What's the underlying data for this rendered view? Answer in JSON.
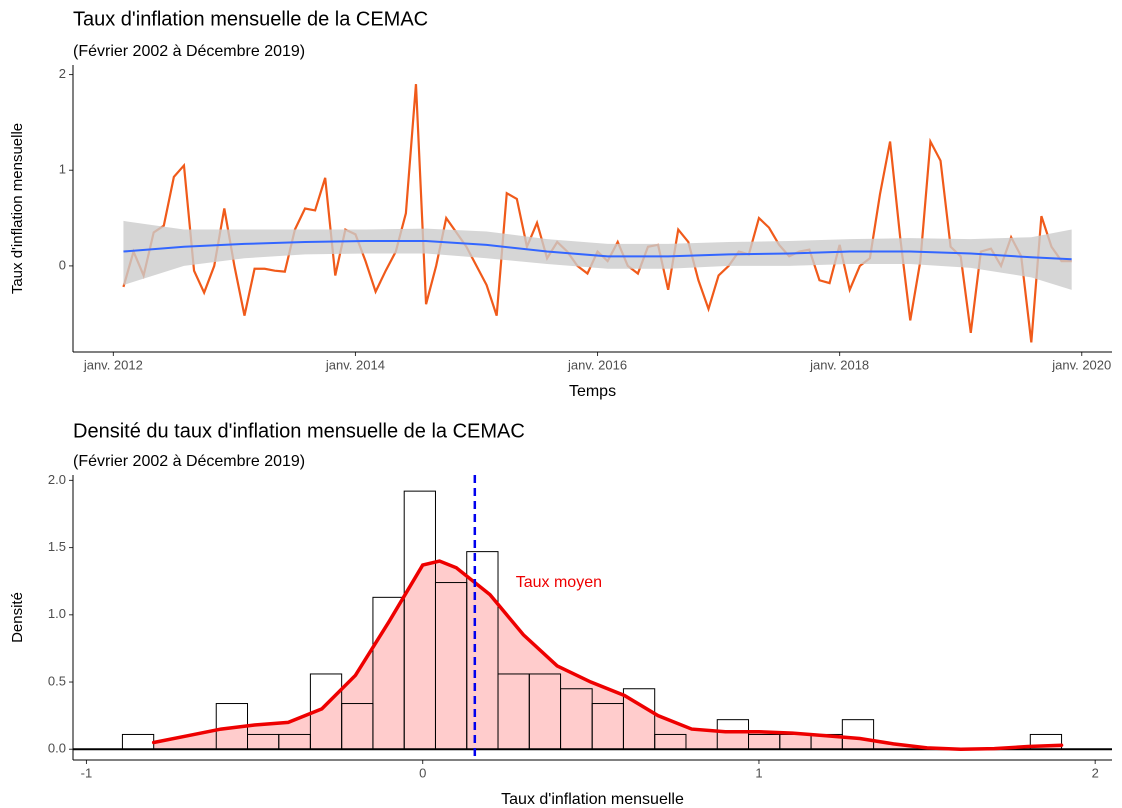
{
  "chart_data": [
    {
      "type": "line",
      "title": "Taux d'inflation mensuelle de la CEMAC",
      "subtitle": "(Février 2002 à Décembre 2019)",
      "xlabel": "Temps",
      "ylabel": "Taux d'inflation mensuelle",
      "x": [
        "2012-02",
        "2012-03",
        "2012-04",
        "2012-05",
        "2012-06",
        "2012-07",
        "2012-08",
        "2012-09",
        "2012-10",
        "2012-11",
        "2012-12",
        "2013-01",
        "2013-02",
        "2013-03",
        "2013-04",
        "2013-05",
        "2013-06",
        "2013-07",
        "2013-08",
        "2013-09",
        "2013-10",
        "2013-11",
        "2013-12",
        "2014-01",
        "2014-02",
        "2014-03",
        "2014-04",
        "2014-05",
        "2014-06",
        "2014-07",
        "2014-08",
        "2014-09",
        "2014-10",
        "2014-11",
        "2014-12",
        "2015-01",
        "2015-02",
        "2015-03",
        "2015-04",
        "2015-05",
        "2015-06",
        "2015-07",
        "2015-08",
        "2015-09",
        "2015-10",
        "2015-11",
        "2015-12",
        "2016-01",
        "2016-02",
        "2016-03",
        "2016-04",
        "2016-05",
        "2016-06",
        "2016-07",
        "2016-08",
        "2016-09",
        "2016-10",
        "2016-11",
        "2016-12",
        "2017-01",
        "2017-02",
        "2017-03",
        "2017-04",
        "2017-05",
        "2017-06",
        "2017-07",
        "2017-08",
        "2017-09",
        "2017-10",
        "2017-11",
        "2017-12",
        "2018-01",
        "2018-02",
        "2018-03",
        "2018-04",
        "2018-05",
        "2018-06",
        "2018-07",
        "2018-08",
        "2018-09",
        "2018-10",
        "2018-11",
        "2018-12",
        "2019-01",
        "2019-02",
        "2019-03",
        "2019-04",
        "2019-05",
        "2019-06",
        "2019-07",
        "2019-08",
        "2019-09",
        "2019-10",
        "2019-11",
        "2019-12"
      ],
      "series": [
        {
          "color": "#f05a1a",
          "values": [
            -0.22,
            0.15,
            -0.1,
            0.35,
            0.42,
            0.93,
            1.05,
            -0.05,
            -0.28,
            0.0,
            0.6,
            0.0,
            -0.52,
            -0.03,
            -0.03,
            -0.05,
            -0.06,
            0.38,
            0.6,
            0.58,
            0.92,
            -0.1,
            0.38,
            0.33,
            0.05,
            -0.27,
            -0.05,
            0.15,
            0.55,
            1.9,
            -0.4,
            0.0,
            0.5,
            0.35,
            0.2,
            0.0,
            -0.2,
            -0.52,
            0.76,
            0.7,
            0.2,
            0.45,
            0.08,
            0.25,
            0.15,
            0.0,
            -0.08,
            0.15,
            0.05,
            0.25,
            0.0,
            -0.08,
            0.2,
            0.22,
            -0.25,
            0.38,
            0.25,
            -0.15,
            -0.45,
            -0.1,
            0.0,
            0.15,
            0.12,
            0.5,
            0.4,
            0.22,
            0.1,
            0.15,
            0.17,
            -0.15,
            -0.18,
            0.22,
            -0.25,
            0.0,
            0.08,
            0.75,
            1.3,
            0.3,
            -0.57,
            0.05,
            1.3,
            1.1,
            0.2,
            0.1,
            -0.7,
            0.15,
            0.18,
            0.0,
            0.3,
            0.1,
            -0.8,
            0.52,
            0.2,
            0.05,
            0.05
          ]
        },
        {
          "color": "#3366ff",
          "band_color": "#cccccc",
          "x": [
            "2012-02",
            "2012-08",
            "2013-02",
            "2013-08",
            "2014-02",
            "2014-08",
            "2015-02",
            "2015-08",
            "2016-02",
            "2016-08",
            "2017-02",
            "2017-08",
            "2018-02",
            "2018-08",
            "2019-02",
            "2019-08",
            "2019-12"
          ],
          "values": [
            0.15,
            0.2,
            0.23,
            0.25,
            0.26,
            0.26,
            0.22,
            0.15,
            0.1,
            0.1,
            0.12,
            0.13,
            0.15,
            0.15,
            0.13,
            0.09,
            0.07
          ],
          "lower": [
            -0.2,
            0.0,
            0.08,
            0.12,
            0.13,
            0.13,
            0.08,
            0.02,
            -0.03,
            -0.03,
            0.0,
            0.0,
            0.02,
            0.02,
            -0.02,
            -0.12,
            -0.25
          ],
          "upper": [
            0.47,
            0.38,
            0.38,
            0.38,
            0.38,
            0.39,
            0.36,
            0.28,
            0.23,
            0.23,
            0.25,
            0.26,
            0.28,
            0.29,
            0.28,
            0.3,
            0.38
          ]
        }
      ],
      "xlim": [
        "2011-09",
        "2020-04"
      ],
      "xticks": [
        {
          "value": "2012-01",
          "label": "janv. 2012"
        },
        {
          "value": "2014-01",
          "label": "janv. 2014"
        },
        {
          "value": "2016-01",
          "label": "janv. 2016"
        },
        {
          "value": "2018-01",
          "label": "janv. 2018"
        },
        {
          "value": "2020-01",
          "label": "janv. 2020"
        }
      ],
      "ylim": [
        -0.9,
        2.1
      ],
      "yticks": [
        0,
        1,
        2
      ]
    },
    {
      "type": "histogram",
      "title": "Densité du taux d'inflation mensuelle de la CEMAC",
      "subtitle": "(Février 2002 à Décembre 2019)",
      "xlabel": "Taux d'inflation mensuelle",
      "ylabel": "Densité",
      "bins": [
        -0.893,
        -0.8,
        -0.707,
        -0.614,
        -0.521,
        -0.428,
        -0.334,
        -0.241,
        -0.148,
        -0.055,
        0.038,
        0.131,
        0.224,
        0.317,
        0.41,
        0.504,
        0.597,
        0.69,
        0.783,
        0.876,
        0.969,
        1.062,
        1.155,
        1.248,
        1.341,
        1.434,
        1.528,
        1.621,
        1.714,
        1.807,
        1.9
      ],
      "values": [
        0.11,
        0,
        0,
        0.34,
        0.11,
        0.11,
        0.56,
        0.34,
        1.13,
        1.92,
        1.24,
        1.47,
        0.56,
        0.56,
        0.45,
        0.34,
        0.45,
        0.11,
        0,
        0.22,
        0.11,
        0.11,
        0.11,
        0.22,
        0,
        0,
        0,
        0,
        0,
        0.11
      ],
      "color": "#000000",
      "density": {
        "color": "#ee0000",
        "fill": "#ff0000",
        "x": [
          -0.8,
          -0.7,
          -0.6,
          -0.5,
          -0.4,
          -0.3,
          -0.2,
          -0.1,
          0,
          0.05,
          0.1,
          0.2,
          0.3,
          0.4,
          0.5,
          0.6,
          0.7,
          0.8,
          0.9,
          1.0,
          1.1,
          1.2,
          1.3,
          1.4,
          1.5,
          1.6,
          1.7,
          1.8,
          1.9
        ],
        "values": [
          0.05,
          0.1,
          0.15,
          0.18,
          0.2,
          0.3,
          0.55,
          0.95,
          1.37,
          1.4,
          1.35,
          1.15,
          0.85,
          0.62,
          0.5,
          0.4,
          0.25,
          0.15,
          0.13,
          0.13,
          0.12,
          0.1,
          0.08,
          0.04,
          0.01,
          0,
          0.005,
          0.02,
          0.03
        ]
      },
      "mean": 0.155,
      "mean_color": "#0000ee",
      "annotation": {
        "text": "Taux moyen",
        "x": 0.405,
        "y": 1.24,
        "color": "#ee0000"
      },
      "xlim": [
        -1.04,
        2.05
      ],
      "xticks": [
        -1,
        0,
        1,
        2
      ],
      "ylim": [
        -0.08,
        2.04
      ],
      "yticks": [
        {
          "value": 0,
          "label": "0.0"
        },
        {
          "value": 0.5,
          "label": "0.5"
        },
        {
          "value": 1,
          "label": "1.0"
        },
        {
          "value": 1.5,
          "label": "1.5"
        },
        {
          "value": 2,
          "label": "2.0"
        }
      ]
    }
  ]
}
